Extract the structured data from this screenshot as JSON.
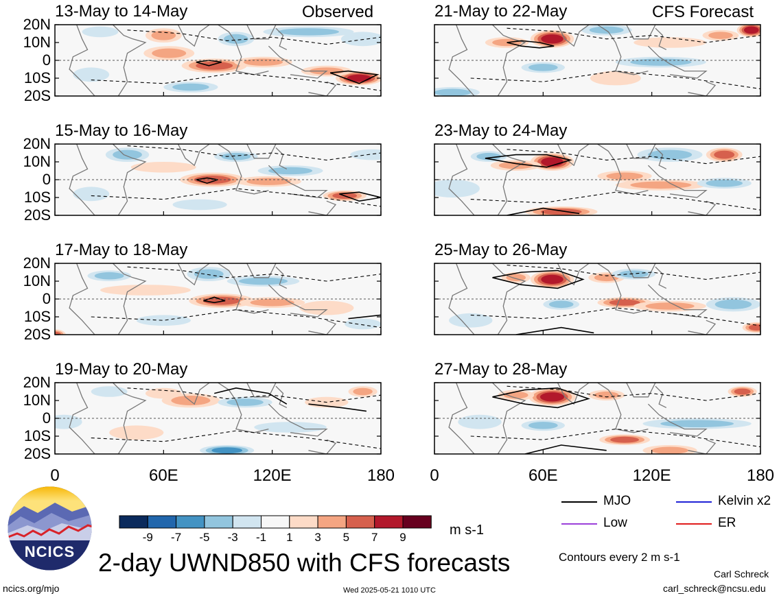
{
  "figure_title": "2-day UWND850 with CFS forecasts",
  "units": "m s-1",
  "contour_note": "Contours every 2 m s-1",
  "left_column_label": "Observed",
  "right_column_label": "CFS Forecast",
  "footer": {
    "site": "ncics.org/mjo",
    "timestamp": "Wed 2025-05-21 1010 UTC",
    "author": "Carl Schreck",
    "email": "carl_schreck@ncsu.edu"
  },
  "logo": {
    "text": "NCICS"
  },
  "legend": [
    {
      "label": "MJO",
      "color": "#000000"
    },
    {
      "label": "Kelvin x2",
      "color": "#1f22d6"
    },
    {
      "label": "Low",
      "color": "#9b3fd9"
    },
    {
      "label": "ER",
      "color": "#e01b1b"
    }
  ],
  "colorbar": {
    "ticks": [
      "-9",
      "-7",
      "-5",
      "-3",
      "-1",
      "1",
      "3",
      "5",
      "7",
      "9"
    ],
    "colors": [
      "#0a2a5c",
      "#2166ac",
      "#4393c3",
      "#92c5de",
      "#d1e5f0",
      "#f7f7f7",
      "#fddbc7",
      "#f4a582",
      "#d6604d",
      "#b2182b",
      "#67001f"
    ]
  },
  "chart_data": {
    "type": "heatmap",
    "variable": "UWND850",
    "x_ticks": [
      "0",
      "60E",
      "120E",
      "180"
    ],
    "xlim": [
      0,
      180
    ],
    "y_ticks": [
      "20N",
      "10N",
      "0",
      "10S",
      "20S"
    ],
    "ylim": [
      -20,
      20
    ],
    "panels": [
      {
        "title": "13-May to 14-May",
        "kind": "observed",
        "blobs": [
          [
            88,
            -3,
            18,
            4,
            7
          ],
          [
            63,
            4,
            14,
            4,
            4
          ],
          [
            168,
            -10,
            13,
            4,
            8
          ],
          [
            150,
            -6,
            14,
            3,
            5
          ],
          [
            60,
            14,
            10,
            4,
            4
          ],
          [
            115,
            -1,
            16,
            3,
            4
          ],
          [
            25,
            16,
            10,
            3,
            -3
          ],
          [
            140,
            16,
            25,
            3,
            -4
          ],
          [
            100,
            12,
            10,
            4,
            -5
          ],
          [
            75,
            -15,
            15,
            3,
            -4
          ],
          [
            20,
            -8,
            10,
            4,
            -3
          ],
          [
            170,
            12,
            12,
            4,
            -3
          ]
        ],
        "contours": [
          [
            [
              78,
              -1
            ],
            [
              85,
              -3
            ],
            [
              92,
              -1
            ],
            [
              85,
              0
            ],
            [
              78,
              -1
            ]
          ],
          [
            [
              152,
              -7
            ],
            [
              162,
              -6
            ],
            [
              178,
              -8
            ],
            [
              168,
              -13
            ],
            [
              152,
              -7
            ]
          ]
        ]
      },
      {
        "title": "21-May to 22-May",
        "kind": "forecast",
        "blobs": [
          [
            65,
            12,
            12,
            5,
            8
          ],
          [
            40,
            10,
            12,
            3,
            5
          ],
          [
            175,
            17,
            8,
            4,
            8
          ],
          [
            158,
            14,
            10,
            3,
            5
          ],
          [
            125,
            -1,
            25,
            3,
            -4
          ],
          [
            60,
            -4,
            12,
            3,
            -4
          ],
          [
            10,
            -18,
            15,
            3,
            -4
          ],
          [
            100,
            -10,
            14,
            4,
            3
          ],
          [
            95,
            17,
            14,
            3,
            -4
          ],
          [
            130,
            10,
            20,
            3,
            3
          ]
        ],
        "contours": [
          [
            [
              40,
              10
            ],
            [
              48,
              11
            ],
            [
              58,
              10
            ],
            [
              66,
              8
            ],
            [
              58,
              7
            ],
            [
              48,
              8
            ],
            [
              40,
              10
            ]
          ]
        ]
      },
      {
        "title": "15-May to 16-May",
        "kind": "observed",
        "blobs": [
          [
            87,
            0,
            18,
            4,
            6
          ],
          [
            118,
            -1,
            18,
            3,
            5
          ],
          [
            160,
            -9,
            12,
            3,
            6
          ],
          [
            60,
            7,
            18,
            3,
            3
          ],
          [
            40,
            14,
            12,
            4,
            -4
          ],
          [
            100,
            13,
            12,
            3,
            -5
          ],
          [
            130,
            5,
            18,
            3,
            -4
          ],
          [
            20,
            -8,
            10,
            4,
            -3
          ],
          [
            80,
            -14,
            15,
            3,
            -3
          ],
          [
            175,
            14,
            12,
            3,
            -3
          ]
        ],
        "contours": [
          [
            [
              78,
              0
            ],
            [
              84,
              -2
            ],
            [
              90,
              0
            ],
            [
              84,
              1
            ],
            [
              78,
              0
            ]
          ],
          [
            [
              157,
              -8
            ],
            [
              168,
              -7
            ],
            [
              180,
              -10
            ],
            [
              168,
              -12
            ],
            [
              157,
              -8
            ]
          ]
        ]
      },
      {
        "title": "23-May to 24-May",
        "kind": "forecast",
        "blobs": [
          [
            65,
            10,
            12,
            5,
            9
          ],
          [
            45,
            8,
            14,
            3,
            4
          ],
          [
            160,
            14,
            10,
            4,
            7
          ],
          [
            105,
            2,
            15,
            3,
            5
          ],
          [
            125,
            -3,
            25,
            3,
            4
          ],
          [
            70,
            -18,
            20,
            3,
            6
          ],
          [
            30,
            13,
            10,
            3,
            -4
          ],
          [
            130,
            14,
            18,
            4,
            -4
          ],
          [
            160,
            -2,
            15,
            3,
            -4
          ],
          [
            10,
            -5,
            15,
            5,
            -3
          ]
        ],
        "contours": [
          [
            [
              28,
              12
            ],
            [
              45,
              14
            ],
            [
              62,
              14
            ],
            [
              75,
              11
            ],
            [
              62,
              7
            ],
            [
              45,
              9
            ],
            [
              28,
              12
            ]
          ],
          [
            [
              40,
              -20
            ],
            [
              60,
              -16
            ],
            [
              80,
              -19
            ]
          ]
        ]
      },
      {
        "title": "17-May to 18-May",
        "kind": "observed",
        "blobs": [
          [
            92,
            -1,
            18,
            4,
            7
          ],
          [
            120,
            -2,
            18,
            3,
            5
          ],
          [
            50,
            5,
            25,
            3,
            3
          ],
          [
            85,
            14,
            12,
            4,
            -5
          ],
          [
            115,
            10,
            20,
            3,
            -4
          ],
          [
            30,
            13,
            12,
            3,
            -4
          ],
          [
            0,
            -20,
            6,
            3,
            6
          ],
          [
            150,
            -5,
            15,
            4,
            3
          ],
          [
            170,
            -14,
            10,
            3,
            -3
          ],
          [
            60,
            -12,
            15,
            3,
            -3
          ]
        ],
        "contours": [
          [
            [
              82,
              -1
            ],
            [
              88,
              -2
            ],
            [
              94,
              -1
            ],
            [
              88,
              1
            ],
            [
              82,
              -1
            ]
          ],
          [
            [
              162,
              -11
            ],
            [
              180,
              -9
            ]
          ]
        ]
      },
      {
        "title": "25-May to 26-May",
        "kind": "forecast",
        "blobs": [
          [
            65,
            11,
            12,
            5,
            9
          ],
          [
            45,
            12,
            8,
            3,
            4
          ],
          [
            95,
            12,
            10,
            3,
            4
          ],
          [
            105,
            -2,
            15,
            3,
            6
          ],
          [
            130,
            -4,
            20,
            3,
            4
          ],
          [
            165,
            -3,
            15,
            4,
            -4
          ],
          [
            110,
            14,
            12,
            3,
            -5
          ],
          [
            70,
            -3,
            10,
            3,
            -4
          ],
          [
            20,
            -12,
            12,
            4,
            -3
          ],
          [
            178,
            -16,
            8,
            3,
            6
          ]
        ],
        "contours": [
          [
            [
              32,
              12
            ],
            [
              48,
              15
            ],
            [
              68,
              16
            ],
            [
              82,
              11
            ],
            [
              68,
              6
            ],
            [
              48,
              8
            ],
            [
              32,
              12
            ]
          ],
          [
            [
              45,
              -20
            ],
            [
              70,
              -16
            ],
            [
              88,
              -19
            ]
          ]
        ]
      },
      {
        "title": "19-May to 20-May",
        "kind": "observed",
        "blobs": [
          [
            75,
            10,
            16,
            4,
            5
          ],
          [
            60,
            14,
            10,
            3,
            3
          ],
          [
            95,
            -18,
            15,
            3,
            -6
          ],
          [
            105,
            9,
            15,
            3,
            -4
          ],
          [
            30,
            15,
            10,
            3,
            -3
          ],
          [
            130,
            -5,
            20,
            3,
            -3
          ],
          [
            170,
            15,
            8,
            3,
            4
          ],
          [
            5,
            -2,
            10,
            4,
            -3
          ],
          [
            150,
            9,
            12,
            3,
            3
          ],
          [
            45,
            -8,
            15,
            4,
            3
          ]
        ],
        "contours": [
          [
            [
              88,
              14
            ],
            [
              100,
              17
            ],
            [
              118,
              14
            ],
            [
              128,
              8
            ]
          ],
          [
            [
              140,
              8
            ],
            [
              158,
              6
            ],
            [
              172,
              4
            ]
          ]
        ]
      },
      {
        "title": "27-May to 28-May",
        "kind": "forecast",
        "blobs": [
          [
            65,
            12,
            13,
            5,
            9
          ],
          [
            45,
            13,
            10,
            3,
            5
          ],
          [
            95,
            13,
            10,
            3,
            4
          ],
          [
            105,
            -12,
            14,
            3,
            6
          ],
          [
            145,
            -3,
            30,
            3,
            -4
          ],
          [
            60,
            -4,
            12,
            3,
            -5
          ],
          [
            170,
            15,
            8,
            3,
            6
          ],
          [
            25,
            -2,
            12,
            4,
            -3
          ],
          [
            130,
            -18,
            15,
            3,
            4
          ]
        ],
        "contours": [
          [
            [
              32,
              12
            ],
            [
              50,
              16
            ],
            [
              68,
              17
            ],
            [
              85,
              11
            ],
            [
              68,
              6
            ],
            [
              50,
              8
            ],
            [
              32,
              12
            ]
          ],
          [
            [
              50,
              -20
            ],
            [
              70,
              -15
            ],
            [
              95,
              -18
            ]
          ]
        ]
      }
    ]
  }
}
